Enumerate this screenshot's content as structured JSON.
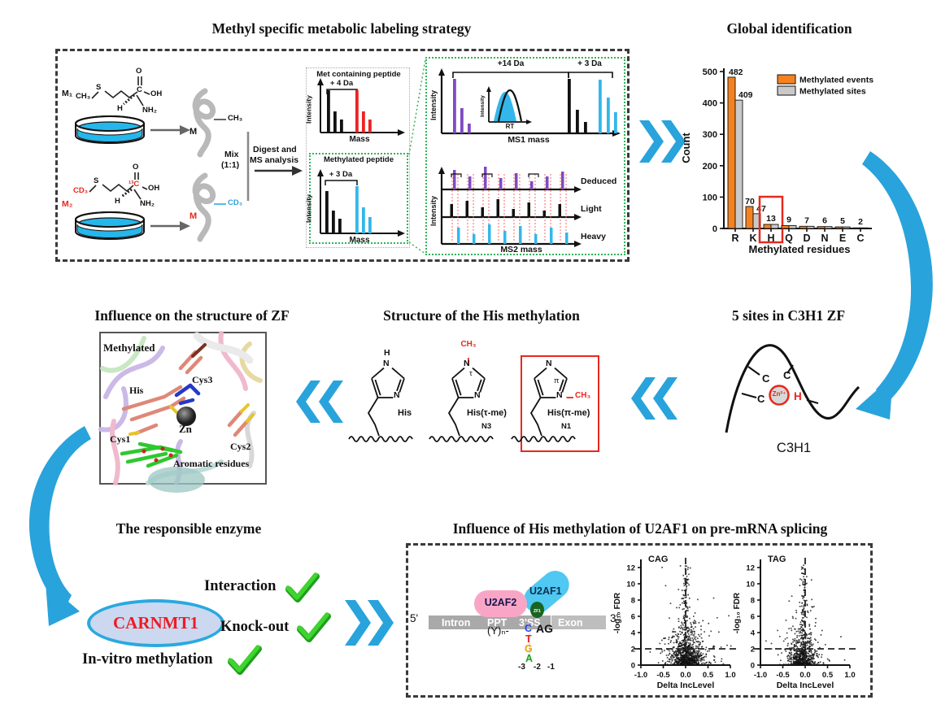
{
  "colors": {
    "blue": "#29A3DB",
    "orange": "#F58220",
    "bar_gray": "#C9C9C9",
    "red": "#E8281E",
    "green": "#3FD42F",
    "purple": "#7E4BC2",
    "cyan_bar": "#33B7EA",
    "pink": "#F9A6C6",
    "dish": "#25B7EB"
  },
  "sections": {
    "labeling": {
      "title": "Methyl specific metabolic labeling strategy",
      "m1": "M₁",
      "m2": "M₂",
      "mol1": {
        "ch3": "CH₃",
        "s": "S",
        "o": "O",
        "cc": "C",
        "oh": "OH",
        "h": "H",
        "nh2": "NH₂"
      },
      "mol2": {
        "cd3": "CD₃",
        "s": "S",
        "o": "O",
        "c13": "¹³C",
        "oh": "OH",
        "h": "H",
        "nh2": "NH₂"
      },
      "protein1": {
        "m": "M",
        "tag": "CH₃"
      },
      "protein2": {
        "m": "M",
        "tag": "CD₃"
      },
      "mix1": "Mix",
      "mix2": "(1:1)",
      "digest1": "Digest and",
      "digest2": "MS analysis",
      "spec1": {
        "title": "Met containing peptide",
        "delta": "+ 4 Da",
        "ylabel": "Intensity",
        "xlabel": "Mass"
      },
      "spec2": {
        "title": "Methylated peptide",
        "delta": "+ 3 Da",
        "ylabel": "Intensity",
        "xlabel": "Mass"
      },
      "ms1": {
        "delta_left": "+14 Da",
        "delta_right": "+ 3 Da",
        "ylabel": "Intensity",
        "xlabel": "MS1 mass",
        "inset_ylabel": "Intensity",
        "inset_xlabel": "RT"
      },
      "ms2": {
        "ylabel": "Intensity",
        "xlabel": "MS2 mass",
        "row1": "Deduced",
        "row2": "Light",
        "row3": "Heavy"
      },
      "spectra": {
        "spec1": {
          "black": [
            52,
            26,
            16
          ],
          "red": [
            52,
            26,
            16
          ]
        },
        "spec2": {
          "black": [
            52,
            28,
            18
          ],
          "cyan": [
            58,
            32,
            20
          ]
        },
        "ms1": {
          "purple": [
            67,
            31,
            12
          ],
          "black": [
            67,
            29,
            14
          ],
          "cyan": [
            66,
            44,
            26
          ]
        },
        "ms2": {
          "deduced": [
            24,
            16,
            28,
            14,
            20,
            10,
            16,
            22
          ],
          "light": [
            16,
            20,
            12,
            22,
            10,
            18,
            8,
            16
          ],
          "heavy": [
            20,
            12,
            24,
            16,
            22,
            12,
            20,
            14
          ],
          "brackets": [
            0,
            2,
            5
          ]
        }
      }
    },
    "global_id": {
      "title": "Global identification"
    },
    "zf": {
      "title": "Influence on the structure of ZF",
      "methylated": "Methylated",
      "cys3": "Cys3",
      "his": "His",
      "zn": "Zn",
      "cys1": "Cys1",
      "cys2": "Cys2",
      "aromatic": "Aromatic residues"
    },
    "his": {
      "title": "Structure of the His methylation",
      "r1": {
        "h": "H",
        "n_top": "N",
        "n_right": "N",
        "label": "His"
      },
      "r2": {
        "ch3": "CH₃",
        "n_top": "N",
        "tau": "τ",
        "n_right": "N",
        "label": "His(τ-me)",
        "pos": "N3"
      },
      "r3": {
        "ch3": "CH₃",
        "n_top": "N",
        "pi": "π",
        "n_right": "N",
        "label": "His(π-me)",
        "pos": "N1"
      }
    },
    "c3h1": {
      "title": "5 sites in C3H1 ZF",
      "c1": "C",
      "c2": "C",
      "c3": "C",
      "h": "H",
      "zn": "Zn²⁺",
      "caption": "C3H1"
    },
    "enzyme": {
      "title": "The responsible enzyme",
      "name": "CARNMT1",
      "check1": "Interaction",
      "check2": "Knock-out",
      "check3": "In-vitro methylation"
    },
    "splicing": {
      "title": "Influence of His methylation of U2AF1 on pre-mRNA splicing",
      "five": "5'",
      "three": "3'",
      "intron": "Intron",
      "ppt": "PPT",
      "ss": "3'SS",
      "exon": "Exon",
      "u2af2": "U2AF2",
      "u2af1": "U2AF1",
      "zf1": "ZF1",
      "yn": "(Y)ₙ-",
      "nt_c": "C",
      "nt_t": "T",
      "nt_g": "G",
      "nt_a": "A",
      "ag": "AG",
      "p3": "-3",
      "p2": "-2",
      "p1": "-1"
    }
  },
  "chart_data": [
    {
      "id": "global",
      "type": "bar",
      "title": "Global identification",
      "categories": [
        "R",
        "K",
        "H",
        "Q",
        "D",
        "N",
        "E",
        "C"
      ],
      "series": [
        {
          "name": "Methylated events",
          "color": "#F58220",
          "values": [
            482,
            70,
            13,
            9,
            7,
            6,
            5,
            2
          ]
        },
        {
          "name": "Methylated sites",
          "color": "#C9C9C9",
          "values": [
            409,
            47,
            13,
            9,
            7,
            6,
            5,
            2
          ]
        }
      ],
      "value_labels": {
        "events": [
          "482",
          "70",
          "13",
          "9",
          "7",
          "6",
          "5",
          "2"
        ],
        "sites": [
          "409",
          "47",
          "",
          "",
          "",
          "",
          "",
          ""
        ]
      },
      "ylabel": "Count",
      "xlabel": "Methylated residues",
      "ylim": [
        0,
        500
      ],
      "yticks": [
        0,
        100,
        200,
        300,
        400,
        500
      ],
      "highlight_category": "H",
      "legend_position": "top-right",
      "grid": false
    },
    {
      "id": "cag",
      "type": "scatter",
      "title": "CAG",
      "xlabel": "Delta IncLevel",
      "ylabel": "-log₁₀ FDR",
      "xlim": [
        -1,
        1
      ],
      "ylim": [
        0,
        12.8
      ],
      "xticks": [
        "-1.0",
        "-0.5",
        "0.0",
        "0.5",
        "1.0"
      ],
      "yticks": [
        0,
        2,
        4,
        6,
        8,
        10,
        12
      ],
      "dashed_hline": 2,
      "dashed_vline": 0,
      "n_points": 1050,
      "seed": 7,
      "x_mean": 0.03,
      "x_sd": 0.17,
      "streak_frac": 0.1,
      "streak_mean": 0.0
    },
    {
      "id": "tag",
      "type": "scatter",
      "title": "TAG",
      "xlabel": "Delta IncLevel",
      "ylabel": "-log₁₀ FDR",
      "xlim": [
        -1,
        1
      ],
      "ylim": [
        0,
        12.8
      ],
      "xticks": [
        "-1.0",
        "-0.5",
        "0.0",
        "0.5",
        "1.0"
      ],
      "yticks": [
        0,
        2,
        4,
        6,
        8,
        10,
        12
      ],
      "dashed_hline": 2,
      "dashed_vline": 0,
      "n_points": 800,
      "seed": 13,
      "x_mean": -0.06,
      "x_sd": 0.15,
      "streak_frac": 0.15,
      "streak_mean": -0.04
    }
  ]
}
